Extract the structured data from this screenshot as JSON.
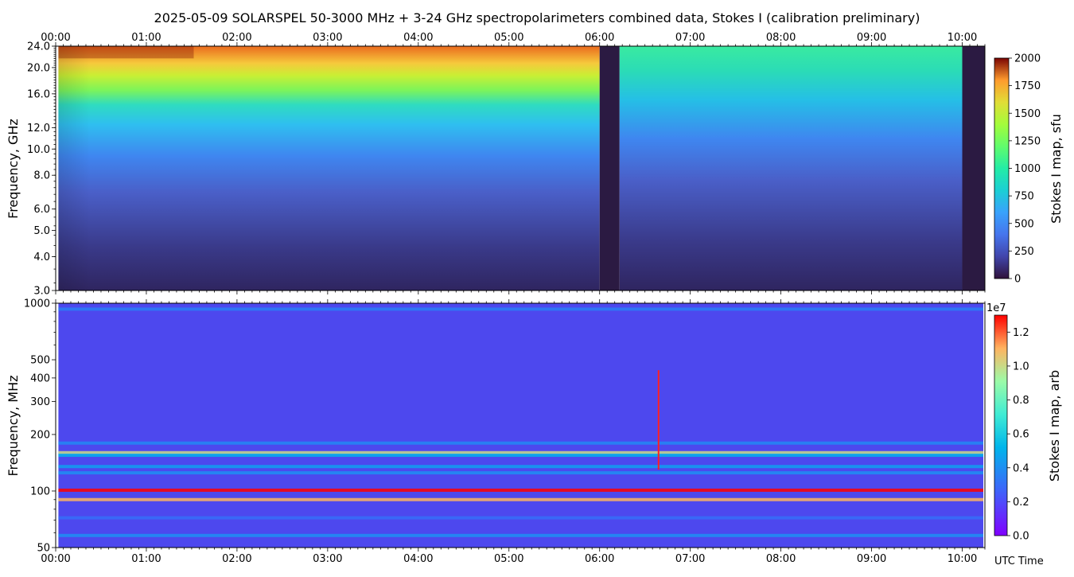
{
  "title": "2025-05-09  SOLARSPEL  50-3000 MHz  +  3-24 GHz  spectropolarimeters combined data,  Stokes I  (calibration preliminary)",
  "colors": {
    "gap": "#2b1a42",
    "band_top": "#7a0c04",
    "lower_bg": "#4d48ee",
    "spike": "#ff2020"
  },
  "chart_data": [
    {
      "type": "heatmap",
      "name": "upper-panel",
      "title": "2025-05-09  SOLARSPEL  50-3000 MHz  +  3-24 GHz  spectropolarimeters combined data,  Stokes I  (calibration preliminary)",
      "xlabel": "",
      "ylabel": "Frequency, GHz",
      "x_ticks": [
        "00:00",
        "01:00",
        "02:00",
        "03:00",
        "04:00",
        "05:00",
        "06:00",
        "07:00",
        "08:00",
        "09:00",
        "10:00"
      ],
      "xlim_hours": [
        0.0,
        10.25
      ],
      "y_ticks": [
        "3.0",
        "4.0",
        "5.0",
        "6.0",
        "8.0",
        "10.0",
        "12.0",
        "16.0",
        "20.0",
        "24.0"
      ],
      "ylim": [
        3.0,
        24.0
      ],
      "y_scale": "log",
      "colorbar": {
        "label": "Stokes I map, sfu",
        "ticks": [
          "0",
          "250",
          "500",
          "750",
          "1000",
          "1250",
          "1500",
          "1750",
          "2000"
        ],
        "range": [
          0,
          2000
        ],
        "colormap": "turbo"
      },
      "data_start_hour": 0.03,
      "data_end_hour": 10.2,
      "gaps_hours": [
        [
          6.0,
          6.22
        ],
        [
          10.0,
          10.25
        ]
      ],
      "profile_sfu": [
        {
          "freq_ghz": 3.0,
          "sfu": 120
        },
        {
          "freq_ghz": 4.0,
          "sfu": 170
        },
        {
          "freq_ghz": 5.0,
          "sfu": 210
        },
        {
          "freq_ghz": 6.0,
          "sfu": 250
        },
        {
          "freq_ghz": 8.0,
          "sfu": 320
        },
        {
          "freq_ghz": 10.0,
          "sfu": 420
        },
        {
          "freq_ghz": 12.0,
          "sfu": 520
        },
        {
          "freq_ghz": 16.0,
          "sfu": 900
        },
        {
          "freq_ghz": 20.0,
          "sfu": 1300
        },
        {
          "freq_ghz": 24.0,
          "sfu": 1700
        }
      ]
    },
    {
      "type": "heatmap",
      "name": "lower-panel",
      "xlabel": "UTC Time",
      "ylabel": "Frequency, MHz",
      "x_ticks": [
        "00:00",
        "01:00",
        "02:00",
        "03:00",
        "04:00",
        "05:00",
        "06:00",
        "07:00",
        "08:00",
        "09:00",
        "10:00"
      ],
      "xlim_hours": [
        0.0,
        10.25
      ],
      "y_ticks": [
        "50",
        "100",
        "200",
        "300",
        "400",
        "500",
        "1000"
      ],
      "ylim": [
        50,
        1000
      ],
      "y_scale": "log",
      "colorbar": {
        "label": "Stokes I map, arb",
        "ticks": [
          "0.0",
          "0.2",
          "0.4",
          "0.6",
          "0.8",
          "1.0",
          "1.2"
        ],
        "offset_label": "1e7",
        "range": [
          0.0,
          1.3
        ],
        "colormap": "rainbow"
      },
      "bands": [
        {
          "freq_mhz": 930,
          "level": 0.35
        },
        {
          "freq_mhz": 180,
          "level": 0.38
        },
        {
          "freq_mhz": 160,
          "level": 1.0
        },
        {
          "freq_mhz": 155,
          "level": 0.5
        },
        {
          "freq_mhz": 135,
          "level": 0.45
        },
        {
          "freq_mhz": 125,
          "level": 0.4
        },
        {
          "freq_mhz": 101,
          "level": 1.3
        },
        {
          "freq_mhz": 90,
          "level": 1.1
        },
        {
          "freq_mhz": 72,
          "level": 0.3
        },
        {
          "freq_mhz": 58,
          "level": 0.4
        }
      ],
      "events": [
        {
          "time_hour": 6.65,
          "freq_min_mhz": 130,
          "freq_max_mhz": 440,
          "level": 1.3
        }
      ]
    }
  ]
}
